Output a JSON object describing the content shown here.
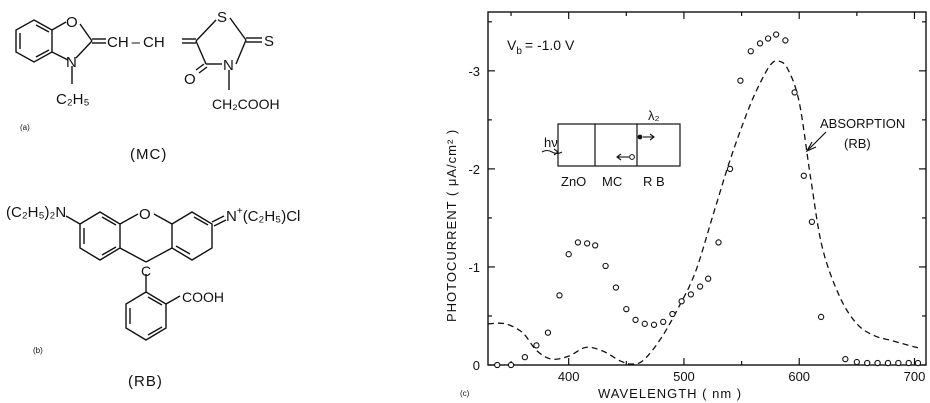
{
  "panel_a": {
    "label": "(a)",
    "name": "(MC)",
    "atoms": {
      "O": "O",
      "S1": "S",
      "S2": "S",
      "N1": "N",
      "N2": "N",
      "O_keto": "O",
      "ethyl": "C₂H₅",
      "chain": "CH – CH",
      "acid": "CH₂COOH"
    }
  },
  "panel_b": {
    "label": "(b)",
    "name": "(RB)",
    "atoms": {
      "O": "O",
      "C": "C",
      "left": "(C₂H₅)₂N",
      "right_n": "N",
      "right_plus": "+",
      "right_rest": "(C₂H₅)Cl",
      "right_minus": "−",
      "acid": "COOH"
    }
  },
  "panel_c": {
    "label": "(c)",
    "annotation_bias": "V",
    "annotation_bias_sub": "b",
    "annotation_bias_value": "= -1.0 V",
    "annotation_absorption": "ABSORPTION",
    "annotation_absorption_rb": "(RB)",
    "inset": {
      "hv": "hν",
      "lambda": "λ₂",
      "layers": [
        "ZnO",
        "MC",
        "R B"
      ]
    }
  },
  "chart_data": {
    "type": "scatter",
    "xlabel": "WAVELENGTH ( nm )",
    "ylabel": "PHOTOCURRENT ( μA/cm² )",
    "xlim": [
      330,
      710
    ],
    "ylim": [
      0,
      -3.6
    ],
    "xticks": [
      400,
      500,
      600,
      700
    ],
    "yticks": [
      0,
      -1,
      -2,
      -3
    ],
    "xtick_labels": [
      "400",
      "500",
      "600",
      "700"
    ],
    "ytick_labels": [
      "0",
      "-1",
      "-2",
      "-3"
    ],
    "grid": false,
    "series": [
      {
        "name": "photocurrent",
        "marker": "open-circle",
        "x": [
          338,
          350,
          362,
          372,
          382,
          392,
          400,
          408,
          416,
          423,
          432,
          441,
          450,
          458,
          466,
          474,
          482,
          490,
          498,
          506,
          514,
          521,
          530,
          540,
          549,
          558,
          566,
          573,
          580,
          588,
          596,
          604,
          611,
          619,
          640,
          650,
          659,
          668,
          677,
          686,
          695,
          703
        ],
        "y": [
          0,
          0,
          -0.08,
          -0.2,
          -0.33,
          -0.71,
          -1.13,
          -1.25,
          -1.24,
          -1.22,
          -1.01,
          -0.79,
          -0.57,
          -0.46,
          -0.42,
          -0.41,
          -0.44,
          -0.52,
          -0.65,
          -0.72,
          -0.8,
          -0.88,
          -1.25,
          -2.0,
          -2.9,
          -3.2,
          -3.28,
          -3.33,
          -3.37,
          -3.31,
          -2.78,
          -1.93,
          -1.46,
          -0.49,
          -0.06,
          -0.03,
          -0.02,
          -0.02,
          -0.02,
          -0.02,
          -0.02,
          -0.02
        ]
      },
      {
        "name": "absorption",
        "style": "dashed",
        "x": [
          330,
          345,
          360,
          372,
          385,
          400,
          415,
          430,
          445,
          455,
          465,
          480,
          495,
          510,
          525,
          540,
          555,
          565,
          575,
          582,
          590,
          600,
          610,
          620,
          635,
          650,
          665,
          680,
          695,
          705
        ],
        "y": [
          -0.42,
          -0.42,
          -0.33,
          -0.15,
          -0.06,
          -0.09,
          -0.18,
          -0.14,
          -0.04,
          -0.01,
          -0.05,
          -0.27,
          -0.58,
          -0.95,
          -1.52,
          -2.09,
          -2.58,
          -2.85,
          -3.06,
          -3.1,
          -3.02,
          -2.68,
          -1.9,
          -1.2,
          -0.7,
          -0.42,
          -0.3,
          -0.25,
          -0.2,
          -0.17
        ]
      }
    ]
  }
}
